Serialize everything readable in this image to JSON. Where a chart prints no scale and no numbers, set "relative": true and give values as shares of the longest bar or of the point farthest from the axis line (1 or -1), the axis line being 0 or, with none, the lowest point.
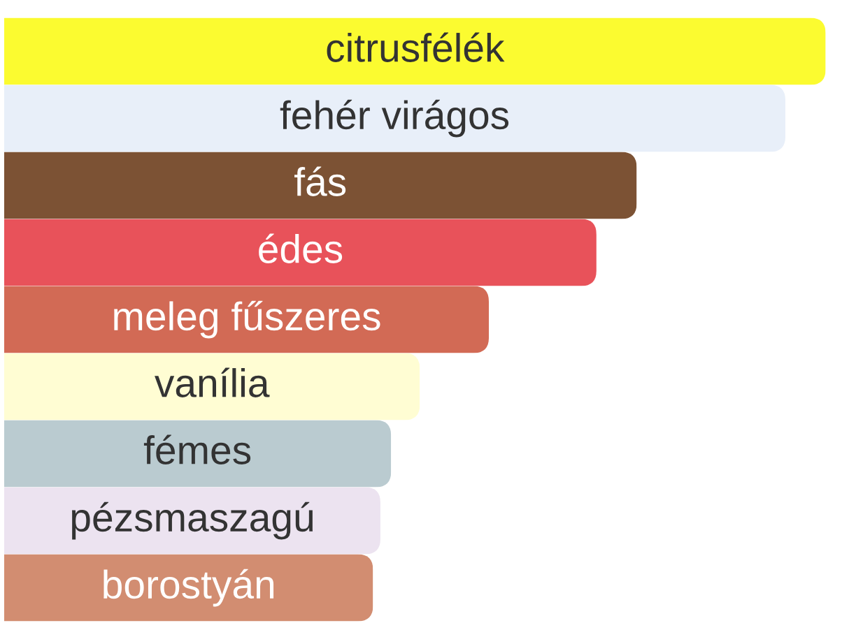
{
  "chart_data": {
    "type": "bar",
    "orientation": "horizontal",
    "relative": true,
    "categories": [
      "citrusfélék",
      "fehér virágos",
      "fás",
      "édes",
      "meleg fűszeres",
      "vanília",
      "fémes",
      "pézsmaszagú",
      "borostyán"
    ],
    "values": [
      1,
      0.951,
      0.77,
      0.721,
      0.59,
      0.506,
      0.471,
      0.458,
      0.449
    ],
    "colors": [
      "#fbfb30",
      "#e8eff9",
      "#7c5234",
      "#e8525a",
      "#d26a55",
      "#fffdd3",
      "#bacbd0",
      "#ece3f0",
      "#d28d71"
    ]
  }
}
